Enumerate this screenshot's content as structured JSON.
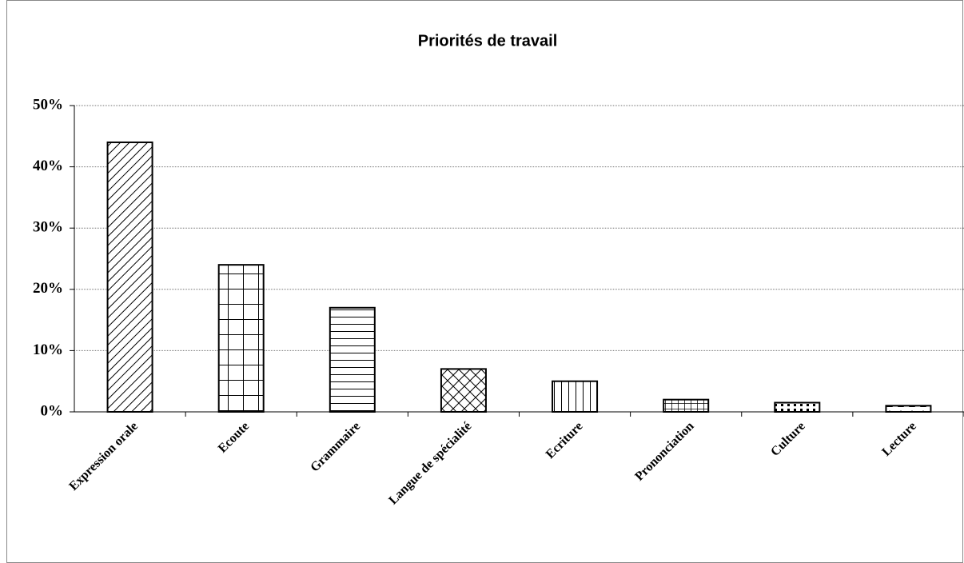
{
  "chart_data": {
    "type": "bar",
    "title": "Priorités de travail",
    "categories": [
      "Expression orale",
      "Ecoute",
      "Grammaire",
      "Langue de spécialité",
      "Ecriture",
      "Prononciation",
      "Culture",
      "Lecture"
    ],
    "values": [
      44,
      24,
      17,
      7,
      5,
      2,
      1.5,
      1
    ],
    "color": "#ffffff",
    "ylim": [
      0,
      50
    ],
    "yticks": [
      {
        "value": 0,
        "label": "0%"
      },
      {
        "value": 10,
        "label": "10%"
      },
      {
        "value": 20,
        "label": "20%"
      },
      {
        "value": 30,
        "label": "30%"
      },
      {
        "value": 40,
        "label": "40%"
      },
      {
        "value": 50,
        "label": "50%"
      }
    ],
    "grid": true
  }
}
